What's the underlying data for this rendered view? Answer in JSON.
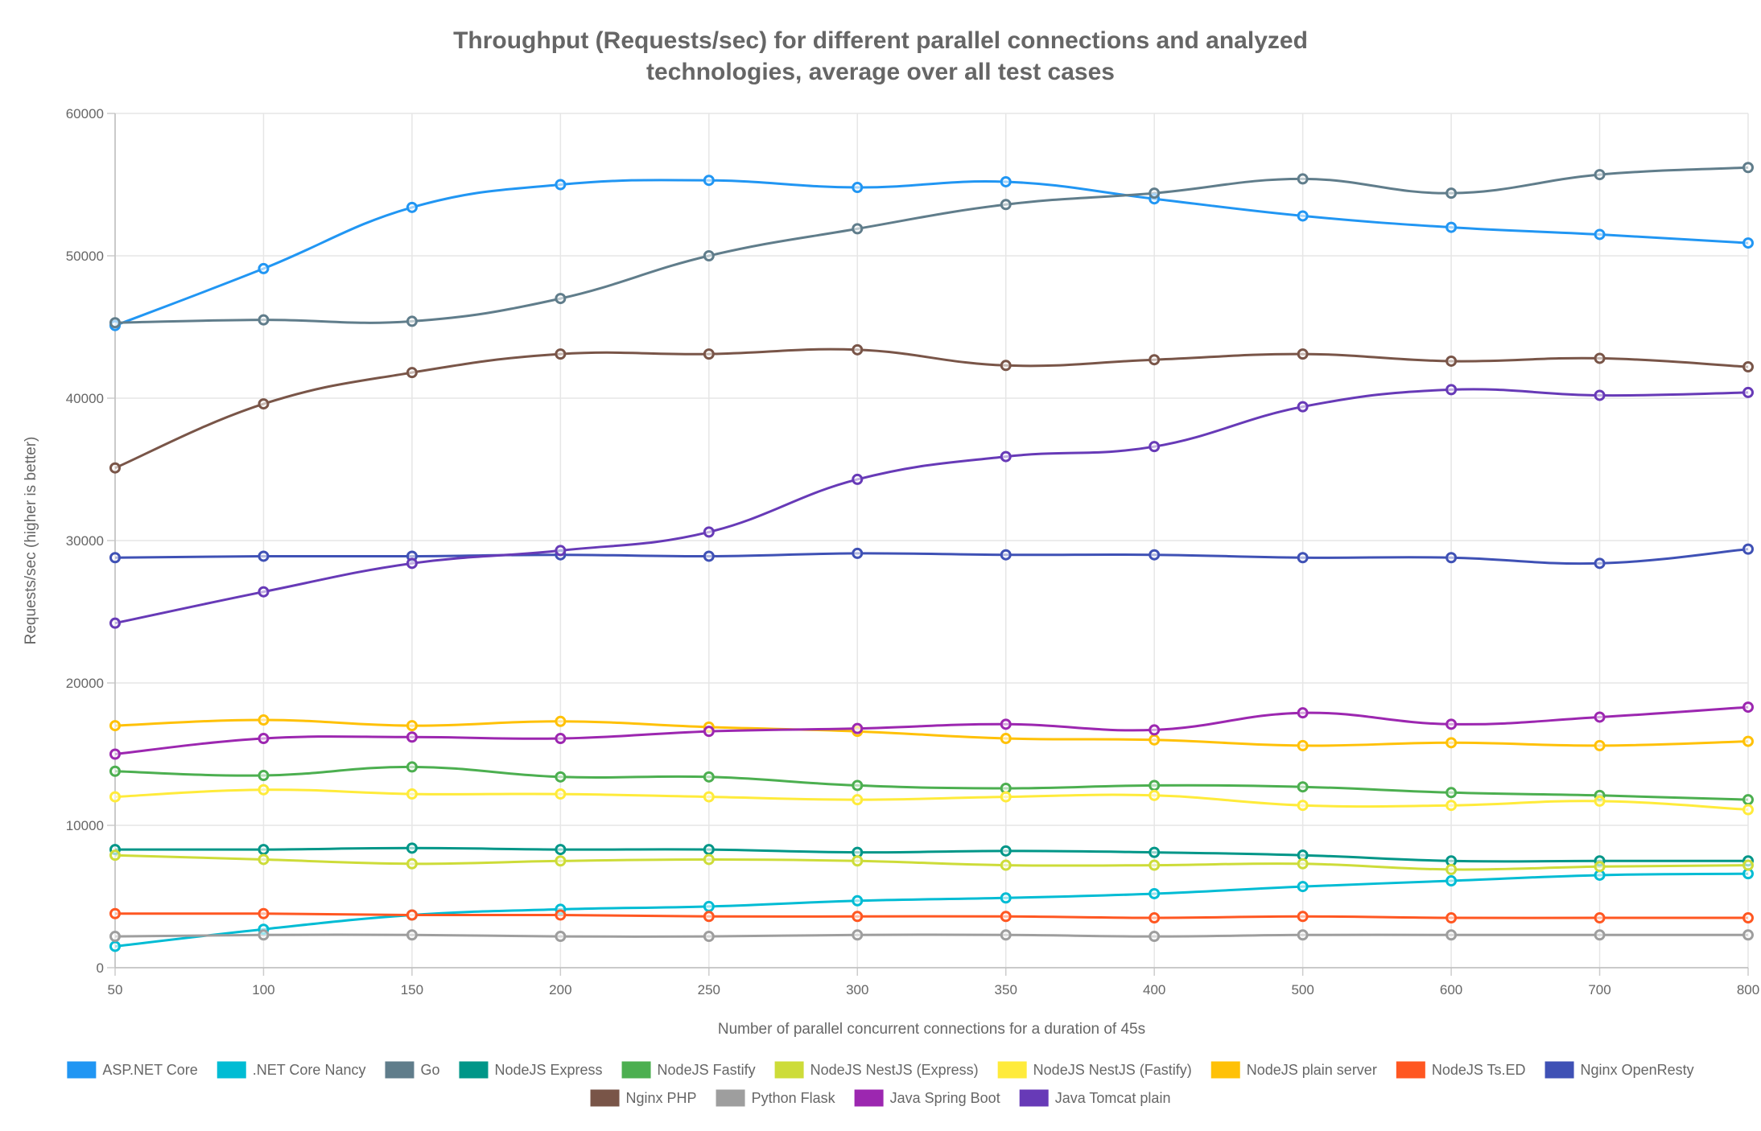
{
  "chart_data": {
    "type": "line",
    "title": [
      "Throughput (Requests/sec) for different parallel connections and analyzed",
      "technologies, average over all test cases"
    ],
    "xlabel": "Number of parallel concurrent connections for a duration of 45s",
    "ylabel": "Requests/sec (higher is better)",
    "categories": [
      "50",
      "100",
      "150",
      "200",
      "250",
      "300",
      "350",
      "400",
      "500",
      "600",
      "700",
      "800"
    ],
    "ylim": [
      0,
      60000
    ],
    "yticks": [
      "0",
      "10000",
      "20000",
      "30000",
      "40000",
      "50000",
      "60000"
    ],
    "grid": true,
    "legend_position": "bottom",
    "series": [
      {
        "name": "ASP.NET Core",
        "color": "#2196F3",
        "values": [
          45100,
          49100,
          53400,
          55000,
          55300,
          54800,
          55200,
          54000,
          52800,
          52000,
          51500,
          50900
        ]
      },
      {
        "name": ".NET Core Nancy",
        "color": "#00BCD4",
        "values": [
          1500,
          2700,
          3700,
          4100,
          4300,
          4700,
          4900,
          5200,
          5700,
          6100,
          6500,
          6600
        ]
      },
      {
        "name": "Go",
        "color": "#607D8B",
        "values": [
          45300,
          45500,
          45400,
          47000,
          50000,
          51900,
          53600,
          54400,
          55400,
          54400,
          55700,
          56200
        ]
      },
      {
        "name": "NodeJS Express",
        "color": "#009688",
        "values": [
          8300,
          8300,
          8400,
          8300,
          8300,
          8100,
          8200,
          8100,
          7900,
          7500,
          7500,
          7500
        ]
      },
      {
        "name": "NodeJS Fastify",
        "color": "#4CAF50",
        "values": [
          13800,
          13500,
          14100,
          13400,
          13400,
          12800,
          12600,
          12800,
          12700,
          12300,
          12100,
          11800
        ]
      },
      {
        "name": "NodeJS NestJS (Express)",
        "color": "#CDDC39",
        "values": [
          7900,
          7600,
          7300,
          7500,
          7600,
          7500,
          7200,
          7200,
          7300,
          6900,
          7100,
          7200
        ]
      },
      {
        "name": "NodeJS NestJS (Fastify)",
        "color": "#FFEB3B",
        "values": [
          12000,
          12500,
          12200,
          12200,
          12000,
          11800,
          12000,
          12100,
          11400,
          11400,
          11700,
          11100
        ]
      },
      {
        "name": "NodeJS plain server",
        "color": "#FFC107",
        "values": [
          17000,
          17400,
          17000,
          17300,
          16900,
          16600,
          16100,
          16000,
          15600,
          15800,
          15600,
          15900
        ]
      },
      {
        "name": "NodeJS Ts.ED",
        "color": "#FF5722",
        "values": [
          3800,
          3800,
          3700,
          3700,
          3600,
          3600,
          3600,
          3500,
          3600,
          3500,
          3500,
          3500
        ]
      },
      {
        "name": "Nginx OpenResty",
        "color": "#3F51B5",
        "values": [
          28800,
          28900,
          28900,
          29000,
          28900,
          29100,
          29000,
          29000,
          28800,
          28800,
          28400,
          29400
        ]
      },
      {
        "name": "Nginx PHP",
        "color": "#795548",
        "values": [
          35100,
          39600,
          41800,
          43100,
          43100,
          43400,
          42300,
          42700,
          43100,
          42600,
          42800,
          42200
        ]
      },
      {
        "name": "Python Flask",
        "color": "#9E9E9E",
        "values": [
          2200,
          2300,
          2300,
          2200,
          2200,
          2300,
          2300,
          2200,
          2300,
          2300,
          2300,
          2300
        ]
      },
      {
        "name": "Java Spring Boot",
        "color": "#9C27B0",
        "values": [
          15000,
          16100,
          16200,
          16100,
          16600,
          16800,
          17100,
          16700,
          17900,
          17100,
          17600,
          18300
        ]
      },
      {
        "name": "Java Tomcat plain",
        "color": "#673AB7",
        "values": [
          24200,
          26400,
          28400,
          29300,
          30600,
          34300,
          35900,
          36600,
          39400,
          40600,
          40200,
          40400
        ]
      }
    ]
  }
}
